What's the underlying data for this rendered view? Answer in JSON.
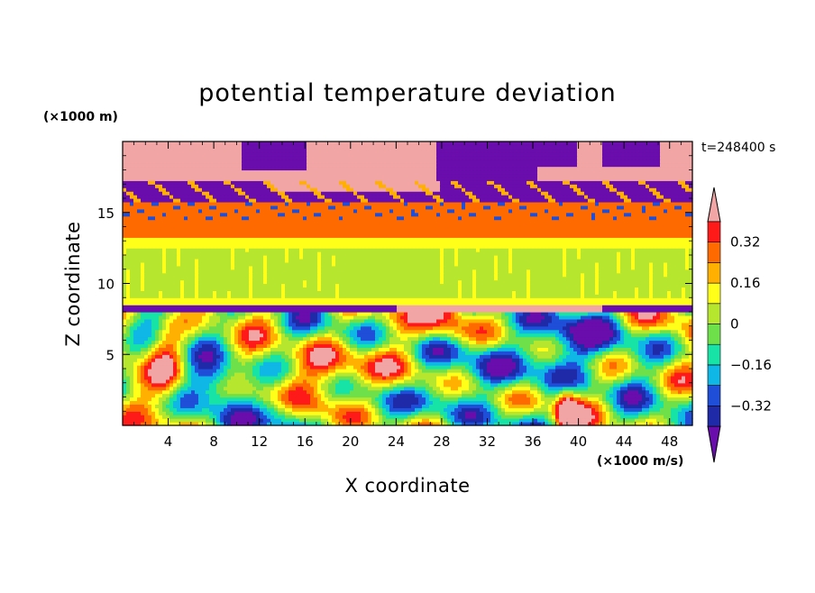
{
  "chart_data": {
    "type": "heatmap",
    "title": "potential temperature deviation",
    "xlabel": "X coordinate",
    "ylabel": "Z coordinate",
    "x_unit": "(×1000 m/s)",
    "y_unit": "(×1000 m)",
    "time_label": "t=248400 s",
    "xlim": [
      0,
      50
    ],
    "ylim": [
      0,
      20
    ],
    "x_ticks": [
      4,
      8,
      12,
      16,
      20,
      24,
      28,
      32,
      36,
      40,
      44,
      48
    ],
    "y_ticks": [
      5,
      10,
      15
    ],
    "colorbar": {
      "labels": [
        "0.32",
        "0.16",
        "0",
        "−0.16",
        "−0.32"
      ],
      "label_values": [
        0.32,
        0.16,
        0,
        -0.16,
        -0.32
      ],
      "levels": [
        -0.4,
        -0.32,
        -0.24,
        -0.16,
        -0.08,
        0,
        0.08,
        0.16,
        0.24,
        0.32,
        0.4
      ],
      "colors": [
        "#6a0dad",
        "#1e2aa8",
        "#1f4fd8",
        "#0fb7e6",
        "#17e3a6",
        "#6ee04a",
        "#b6e62e",
        "#ffff1a",
        "#ffb000",
        "#ff6a00",
        "#ff1a1a",
        "#f2a5a5"
      ],
      "extend": "both"
    },
    "field_regions": [
      {
        "z": [
          17.2,
          20
        ],
        "value": 0.45
      },
      {
        "z": [
          15.8,
          17.2
        ],
        "value": -0.45
      },
      {
        "z": [
          13.2,
          15.8
        ],
        "value": 0.3
      },
      {
        "z": [
          8.5,
          13.2
        ],
        "value": 0.05
      },
      {
        "z": [
          0,
          8.5
        ],
        "value": "mixed"
      }
    ]
  }
}
